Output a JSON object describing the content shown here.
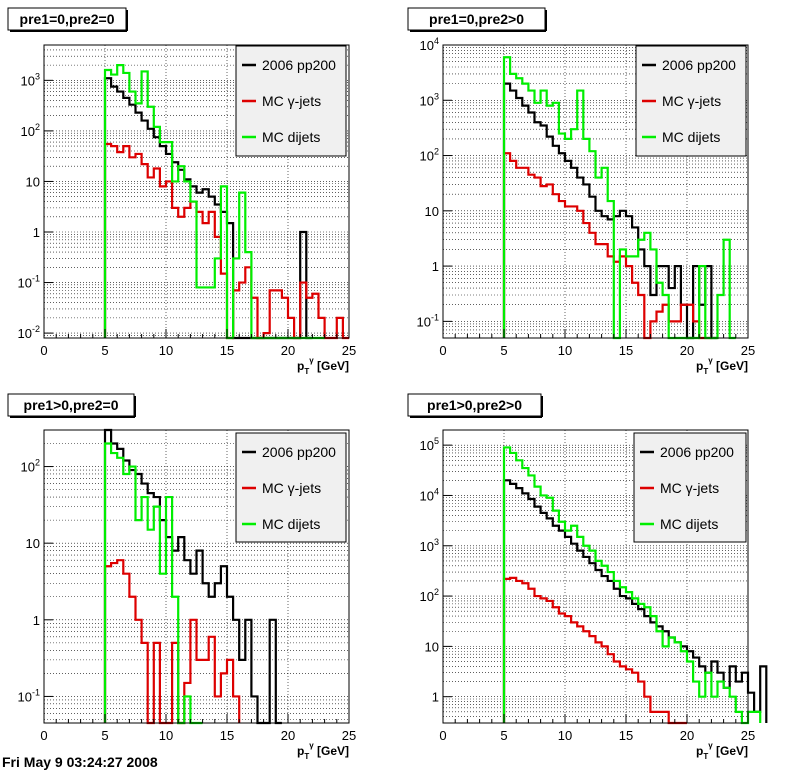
{
  "footer_text": "Fri May  9 03:24:27 2008",
  "legend_labels": [
    "2006 pp200",
    "MC γ-jets",
    "MC dijets"
  ],
  "colors": {
    "data": "#000000",
    "gamma": "#dd0000",
    "dijet": "#00ee00"
  },
  "chart_data": [
    {
      "type": "histogram-step",
      "title": "pre1=0,pre2=0",
      "xlabel": "p_T^γ [GeV]",
      "xlim": [
        0,
        25
      ],
      "ylim": [
        0.008,
        5000
      ],
      "yscale": "log",
      "xticks": [
        0,
        5,
        10,
        15,
        20,
        25
      ],
      "yticks": [
        {
          "v": 0.01,
          "b": "10",
          "e": "-2"
        },
        {
          "v": 0.1,
          "b": "10",
          "e": "-1"
        },
        {
          "v": 1,
          "b": "1",
          "e": ""
        },
        {
          "v": 10,
          "b": "10",
          "e": ""
        },
        {
          "v": 100,
          "b": "10",
          "e": "2"
        },
        {
          "v": 1000,
          "b": "10",
          "e": "3"
        }
      ],
      "grid": true,
      "legend": "top-right",
      "bin_start": 5,
      "bin_width": 0.5,
      "series": [
        {
          "name": "2006 pp200",
          "key": "data",
          "values": [
            1100,
            750,
            600,
            450,
            330,
            230,
            160,
            110,
            75,
            50,
            35,
            24,
            17,
            11,
            8,
            6,
            7,
            5,
            3.5,
            2.5,
            1.5,
            0.008,
            0,
            0,
            0,
            0,
            0,
            0,
            0,
            0,
            0,
            0,
            1,
            0.008
          ]
        },
        {
          "name": "MC γ-jets",
          "key": "gamma",
          "values": [
            55,
            50,
            38,
            50,
            30,
            35,
            22,
            12,
            18,
            8,
            10,
            3,
            2,
            3,
            4,
            2.5,
            1.5,
            2.5,
            0.8,
            0.15,
            0.008,
            0.07,
            0.1,
            0.2,
            0.05,
            0.008,
            0.01,
            0.07,
            0.07,
            0.05,
            0.02,
            0.008,
            0.1,
            0.05,
            0.06,
            0.02,
            0.008,
            0.008,
            0.02,
            0.008
          ]
        },
        {
          "name": "MC dijets",
          "key": "dijet",
          "values": [
            1600,
            1300,
            2000,
            1400,
            600,
            350,
            1500,
            300,
            120,
            60,
            60,
            10,
            20,
            10,
            4,
            0.08,
            0.08,
            0.08,
            0.3,
            8,
            0.008,
            0.3,
            6,
            0.4,
            0.008,
            0.008,
            0.008,
            0.008,
            0.008,
            0.008,
            0.008,
            0.008,
            0.008,
            0.008,
            0.008,
            0.008
          ]
        }
      ]
    },
    {
      "type": "histogram-step",
      "title": "pre1=0,pre2>0",
      "xlabel": "p_T^γ [GeV]",
      "xlim": [
        0,
        25
      ],
      "ylim": [
        0.05,
        10000
      ],
      "yscale": "log",
      "xticks": [
        0,
        5,
        10,
        15,
        20,
        25
      ],
      "yticks": [
        {
          "v": 0.1,
          "b": "10",
          "e": "-1"
        },
        {
          "v": 1,
          "b": "1",
          "e": ""
        },
        {
          "v": 10,
          "b": "10",
          "e": ""
        },
        {
          "v": 100,
          "b": "10",
          "e": "2"
        },
        {
          "v": 1000,
          "b": "10",
          "e": "3"
        },
        {
          "v": 10000,
          "b": "10",
          "e": "4"
        }
      ],
      "grid": true,
      "legend": "top-right",
      "bin_start": 5,
      "bin_width": 0.5,
      "series": [
        {
          "name": "2006 pp200",
          "key": "data",
          "values": [
            2000,
            1500,
            1100,
            800,
            600,
            400,
            350,
            220,
            150,
            110,
            80,
            60,
            40,
            30,
            18,
            10,
            8,
            7,
            8,
            10,
            8,
            5,
            2,
            1,
            0.3,
            1,
            1,
            0.4,
            1,
            0.2,
            0.05,
            1,
            0.2,
            1,
            0.05
          ]
        },
        {
          "name": "MC γ-jets",
          "key": "gamma",
          "values": [
            110,
            80,
            60,
            60,
            45,
            40,
            28,
            30,
            20,
            15,
            12,
            12,
            10,
            6,
            4,
            2.5,
            2.5,
            1.5,
            1.2,
            1.5,
            1,
            0.5,
            0.3,
            0.05,
            0.1,
            0.15,
            0.2,
            0.1,
            0.1,
            0.2,
            0.2,
            0.1,
            0.05,
            0.05
          ]
        },
        {
          "name": "MC dijets",
          "key": "dijet",
          "values": [
            6000,
            3000,
            2500,
            2000,
            1500,
            900,
            1500,
            800,
            900,
            250,
            200,
            300,
            1500,
            200,
            120,
            40,
            60,
            15,
            0.05,
            2,
            1.5,
            1.5,
            3,
            4,
            2,
            0.5,
            0.3,
            0.05,
            0.05,
            0.05,
            0.05,
            0.05,
            1,
            0.05,
            0.05,
            0.3,
            3,
            0.05
          ]
        }
      ]
    },
    {
      "type": "histogram-step",
      "title": "pre1>0,pre2=0",
      "xlabel": "p_T^γ [GeV]",
      "xlim": [
        0,
        25
      ],
      "ylim": [
        0.045,
        300
      ],
      "yscale": "log",
      "xticks": [
        0,
        5,
        10,
        15,
        20,
        25
      ],
      "yticks": [
        {
          "v": 0.1,
          "b": "10",
          "e": "-1"
        },
        {
          "v": 1,
          "b": "1",
          "e": ""
        },
        {
          "v": 10,
          "b": "10",
          "e": ""
        },
        {
          "v": 100,
          "b": "10",
          "e": "2"
        }
      ],
      "grid": true,
      "legend": "top-right",
      "bin_start": 5,
      "bin_width": 0.5,
      "series": [
        {
          "name": "2006 pp200",
          "key": "data",
          "values": [
            300,
            200,
            170,
            120,
            90,
            80,
            60,
            45,
            40,
            20,
            12,
            8,
            12,
            6,
            4,
            8,
            3,
            2,
            3,
            5,
            2,
            1,
            0.3,
            1,
            0.1,
            0.045,
            0.045,
            1,
            0.045
          ]
        },
        {
          "name": "MC γ-jets",
          "key": "gamma",
          "values": [
            5,
            5.5,
            6,
            4,
            2,
            1,
            0.5,
            0.045,
            0.5,
            0.045,
            0.045,
            0.5,
            0.045,
            0.15,
            1,
            0.3,
            0.3,
            0.6,
            0.1,
            0.2,
            0.3,
            0.1
          ]
        },
        {
          "name": "MC dijets",
          "key": "dijet",
          "values": [
            200,
            150,
            130,
            80,
            100,
            20,
            40,
            15,
            30,
            4,
            40,
            2,
            0.045,
            0.1,
            0.045,
            0.045
          ]
        }
      ]
    },
    {
      "type": "histogram-step",
      "title": "pre1>0,pre2>0",
      "xlabel": "p_T^γ [GeV]",
      "xlim": [
        0,
        25
      ],
      "ylim": [
        0.3,
        200000
      ],
      "yscale": "log",
      "xticks": [
        0,
        5,
        10,
        15,
        20,
        25
      ],
      "yticks": [
        {
          "v": 1,
          "b": "1",
          "e": ""
        },
        {
          "v": 10,
          "b": "10",
          "e": ""
        },
        {
          "v": 100,
          "b": "10",
          "e": "2"
        },
        {
          "v": 1000,
          "b": "10",
          "e": "3"
        },
        {
          "v": 10000,
          "b": "10",
          "e": "4"
        },
        {
          "v": 100000,
          "b": "10",
          "e": "5"
        }
      ],
      "grid": true,
      "legend": "top-right",
      "bin_start": 5,
      "bin_width": 0.5,
      "series": [
        {
          "name": "2006 pp200",
          "key": "data",
          "values": [
            20000,
            17000,
            14000,
            11000,
            8500,
            6000,
            4500,
            3500,
            2500,
            2000,
            1500,
            1100,
            800,
            600,
            450,
            330,
            250,
            200,
            140,
            100,
            90,
            70,
            55,
            40,
            30,
            25,
            20,
            15,
            12,
            10,
            8,
            6,
            4,
            3,
            5,
            3,
            1.5,
            4,
            2,
            3,
            1.2,
            0.5,
            4
          ]
        },
        {
          "name": "MC γ-jets",
          "key": "gamma",
          "values": [
            220,
            230,
            200,
            180,
            140,
            100,
            90,
            80,
            60,
            45,
            40,
            30,
            25,
            20,
            16,
            12,
            10,
            7,
            5,
            4,
            3.5,
            3,
            2,
            1,
            0.5,
            0.5,
            0.5,
            0.3,
            0.3,
            0.3
          ]
        },
        {
          "name": "MC dijets",
          "key": "dijet",
          "values": [
            90000,
            70000,
            50000,
            35000,
            25000,
            15000,
            10000,
            9000,
            5000,
            3000,
            2000,
            2500,
            1500,
            1000,
            800,
            500,
            400,
            300,
            200,
            150,
            120,
            90,
            70,
            60,
            40,
            20,
            10,
            15,
            12,
            8,
            5,
            2,
            1,
            3,
            1,
            2,
            1.5,
            1,
            0.5,
            0.3,
            0.5,
            0.5
          ]
        }
      ]
    }
  ]
}
